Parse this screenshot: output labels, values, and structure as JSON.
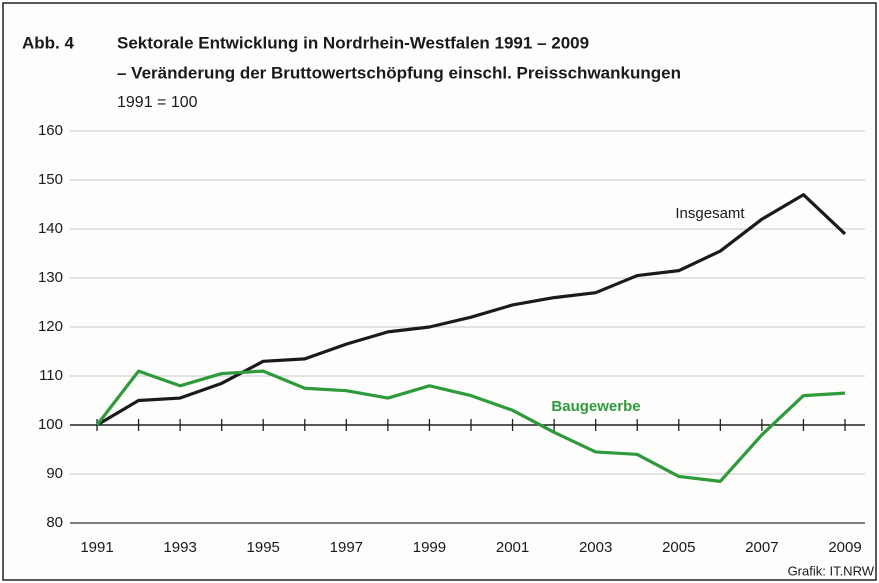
{
  "chart_data": {
    "type": "line",
    "label": "Abb. 4",
    "title": "Sektorale Entwicklung in Nordrhein-Westfalen 1991 – 2009",
    "subtitle": "– Veränderung der Bruttowertschöpfung einschl. Preisschwankungen",
    "note": "1991 = 100",
    "source": "Grafik: IT.NRW",
    "x": [
      1991,
      1992,
      1993,
      1994,
      1995,
      1996,
      1997,
      1998,
      1999,
      2000,
      2001,
      2002,
      2003,
      2004,
      2005,
      2006,
      2007,
      2008,
      2009
    ],
    "xlim": [
      1991,
      2009
    ],
    "xticks": [
      1991,
      1993,
      1995,
      1997,
      1999,
      2001,
      2003,
      2005,
      2007,
      2009
    ],
    "ylim": [
      80,
      160
    ],
    "yticks": [
      80,
      90,
      100,
      110,
      120,
      130,
      140,
      150,
      160
    ],
    "xaxis_at": 100,
    "grid": true,
    "series": [
      {
        "name": "Insgesamt",
        "color": "#1a1a1a",
        "values": [
          100,
          105,
          105.5,
          108.5,
          113,
          113.5,
          116.5,
          119,
          120,
          122,
          124.5,
          126,
          127,
          130.5,
          131.5,
          135.5,
          142,
          147,
          139
        ]
      },
      {
        "name": "Baugewerbe",
        "color": "#2e9a3c",
        "values": [
          100,
          111,
          108,
          110.5,
          111,
          107.5,
          107,
          105.5,
          108,
          106,
          103,
          98.5,
          94.5,
          94,
          89.5,
          88.5,
          98,
          106,
          106.5
        ]
      }
    ]
  }
}
